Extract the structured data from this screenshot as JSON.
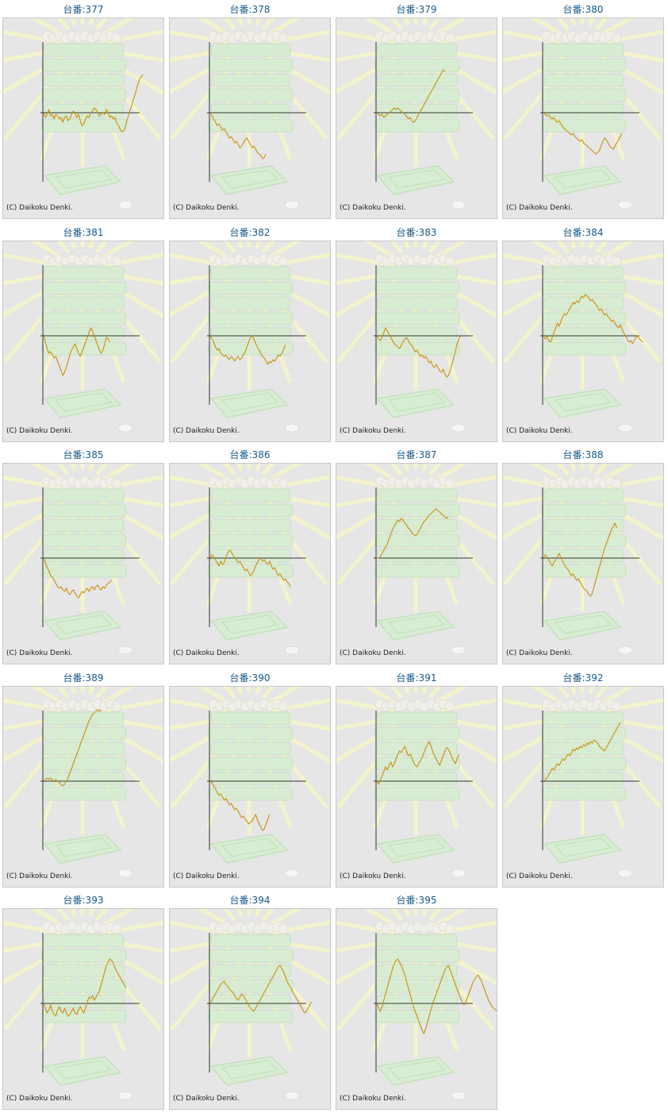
{
  "title_prefix": "台番:",
  "copyright": "(C) Daikoku Denki.",
  "colors": {
    "line": "#c8900a",
    "title": "#1a5a8a",
    "panel_bg": "#e6e6e6",
    "axis": "#333333"
  },
  "chart_data": [
    {
      "type": "line",
      "label": "台番:377",
      "values": [
        0,
        -3,
        -1,
        2,
        -2,
        -1,
        -4,
        -1,
        -2,
        -4,
        -3,
        -6,
        -3,
        -2,
        -5,
        -4,
        -1,
        1,
        0,
        -3,
        -1,
        -5,
        -8,
        -7,
        -4,
        -2,
        -3,
        0,
        1,
        3,
        2,
        0,
        -2,
        -1,
        0,
        -1,
        2,
        0,
        -3,
        -2,
        -4,
        -3,
        -7,
        -8,
        -11,
        -12,
        -11,
        -8,
        -4,
        0,
        3,
        7,
        10,
        14,
        18,
        21,
        23,
        24
      ]
    },
    {
      "type": "line",
      "label": "台番:378",
      "values": [
        0,
        -2,
        -4,
        -6,
        -8,
        -7,
        -9,
        -11,
        -10,
        -12,
        -14,
        -16,
        -15,
        -17,
        -19,
        -18,
        -20,
        -22,
        -21,
        -19,
        -17,
        -16,
        -18,
        -20,
        -22,
        -21,
        -23,
        -25,
        -26,
        -27,
        -29,
        -28,
        -26
      ]
    },
    {
      "type": "line",
      "label": "台番:379",
      "values": [
        0,
        -1,
        -2,
        -1,
        -3,
        -2,
        -1,
        0,
        1,
        2,
        3,
        2,
        3,
        2,
        1,
        0,
        -1,
        -2,
        -4,
        -3,
        -5,
        -6,
        -5,
        -3,
        -1,
        1,
        3,
        5,
        7,
        9,
        11,
        13,
        15,
        17,
        19,
        21,
        23,
        25,
        27,
        26
      ]
    },
    {
      "type": "line",
      "label": "台番:380",
      "values": [
        0,
        -1,
        -2,
        -1,
        -3,
        -4,
        -3,
        -5,
        -6,
        -5,
        -7,
        -9,
        -10,
        -11,
        -12,
        -13,
        -14,
        -13,
        -15,
        -16,
        -17,
        -18,
        -17,
        -19,
        -20,
        -21,
        -22,
        -23,
        -24,
        -25,
        -26,
        -25,
        -24,
        -21,
        -18,
        -16,
        -17,
        -19,
        -21,
        -22,
        -23,
        -21,
        -19,
        -17,
        -15,
        -13
      ]
    },
    {
      "type": "line",
      "label": "台番:381",
      "values": [
        0,
        -4,
        -8,
        -11,
        -10,
        -12,
        -14,
        -13,
        -16,
        -19,
        -22,
        -25,
        -23,
        -20,
        -16,
        -12,
        -9,
        -7,
        -5,
        -8,
        -11,
        -13,
        -10,
        -7,
        -4,
        -1,
        2,
        5,
        3,
        0,
        -3,
        -6,
        -9,
        -11,
        -9,
        -5,
        -1,
        -2,
        -4
      ]
    },
    {
      "type": "line",
      "label": "台番:382",
      "values": [
        0,
        -2,
        -4,
        -7,
        -9,
        -8,
        -11,
        -12,
        -13,
        -12,
        -14,
        -15,
        -13,
        -14,
        -16,
        -14,
        -13,
        -15,
        -14,
        -12,
        -10,
        -7,
        -4,
        -1,
        0,
        -2,
        -5,
        -7,
        -9,
        -11,
        -13,
        -14,
        -16,
        -18,
        -16,
        -17,
        -15,
        -16,
        -14,
        -12,
        -13,
        -11,
        -9,
        -6
      ]
    },
    {
      "type": "line",
      "label": "台番:383",
      "values": [
        0,
        -2,
        -3,
        -1,
        2,
        5,
        3,
        1,
        -1,
        -3,
        -5,
        -6,
        -7,
        -8,
        -6,
        -4,
        -2,
        -1,
        -3,
        -5,
        -6,
        -8,
        -10,
        -9,
        -11,
        -13,
        -12,
        -14,
        -13,
        -15,
        -17,
        -16,
        -19,
        -20,
        -18,
        -20,
        -22,
        -23,
        -21,
        -24,
        -26,
        -25,
        -22,
        -18,
        -14,
        -10,
        -5,
        -2,
        0
      ]
    },
    {
      "type": "line",
      "label": "台番:384",
      "values": [
        0,
        -2,
        0,
        -3,
        -4,
        -1,
        2,
        5,
        8,
        6,
        9,
        12,
        14,
        13,
        15,
        17,
        19,
        21,
        20,
        22,
        21,
        23,
        25,
        24,
        26,
        25,
        24,
        22,
        23,
        21,
        20,
        18,
        16,
        17,
        15,
        13,
        14,
        12,
        11,
        9,
        10,
        8,
        6,
        5,
        7,
        4,
        2,
        0,
        -2,
        -4,
        -3,
        -5,
        -3,
        -1,
        0,
        -2,
        -3,
        -4
      ]
    },
    {
      "type": "line",
      "label": "台番:385",
      "values": [
        0,
        -3,
        -6,
        -8,
        -11,
        -12,
        -14,
        -16,
        -18,
        -19,
        -18,
        -20,
        -21,
        -19,
        -22,
        -23,
        -21,
        -20,
        -22,
        -24,
        -25,
        -23,
        -21,
        -22,
        -20,
        -19,
        -21,
        -19,
        -18,
        -20,
        -18,
        -17,
        -19,
        -20,
        -18,
        -19,
        -17,
        -16,
        -15,
        -14
      ]
    },
    {
      "type": "line",
      "label": "台番:386",
      "values": [
        0,
        2,
        1,
        -1,
        -3,
        -5,
        -2,
        -4,
        -3,
        1,
        3,
        5,
        4,
        2,
        0,
        -1,
        -3,
        -2,
        -4,
        -6,
        -8,
        -7,
        -9,
        -11,
        -10,
        -8,
        -5,
        -3,
        -1,
        0,
        -2,
        -1,
        -3,
        -4,
        -2,
        -5,
        -7,
        -6,
        -9,
        -11,
        -10,
        -12,
        -14,
        -13,
        -15,
        -16,
        -18
      ]
    },
    {
      "type": "line",
      "label": "台番:387",
      "values": [
        0,
        0,
        1,
        3,
        5,
        7,
        9,
        12,
        15,
        18,
        20,
        22,
        24,
        23,
        25,
        24,
        22,
        21,
        19,
        18,
        16,
        15,
        14,
        15,
        17,
        19,
        21,
        23,
        24,
        26,
        27,
        28,
        29,
        30,
        31,
        30,
        29,
        28,
        27,
        26,
        25,
        26
      ]
    },
    {
      "type": "line",
      "label": "台番:388",
      "values": [
        0,
        2,
        1,
        -1,
        -3,
        -5,
        -3,
        -1,
        1,
        3,
        0,
        -2,
        -4,
        -6,
        -7,
        -9,
        -11,
        -10,
        -12,
        -14,
        -13,
        -15,
        -17,
        -19,
        -20,
        -21,
        -23,
        -24,
        -22,
        -18,
        -14,
        -10,
        -6,
        -2,
        2,
        6,
        9,
        12,
        15,
        18,
        20,
        22,
        19
      ]
    },
    {
      "type": "line",
      "label": "台番:389",
      "values": [
        0,
        1,
        2,
        1,
        2,
        1,
        0,
        1,
        0,
        -1,
        -2,
        -3,
        -2,
        0,
        2,
        5,
        8,
        11,
        14,
        17,
        20,
        23,
        26,
        29,
        32,
        35,
        38,
        40,
        42,
        43,
        44,
        45,
        44,
        45
      ]
    },
    {
      "type": "line",
      "label": "台番:390",
      "values": [
        0,
        -1,
        -3,
        -5,
        -7,
        -9,
        -8,
        -10,
        -12,
        -11,
        -13,
        -15,
        -14,
        -16,
        -18,
        -17,
        -19,
        -21,
        -23,
        -22,
        -24,
        -25,
        -27,
        -26,
        -25,
        -23,
        -21,
        -24,
        -27,
        -29,
        -31,
        -30,
        -27,
        -24,
        -21
      ]
    },
    {
      "type": "line",
      "label": "台番:391",
      "values": [
        0,
        -2,
        1,
        3,
        6,
        9,
        7,
        10,
        12,
        9,
        11,
        14,
        17,
        19,
        18,
        20,
        22,
        19,
        16,
        17,
        15,
        12,
        10,
        9,
        11,
        13,
        15,
        18,
        21,
        23,
        25,
        22,
        19,
        16,
        14,
        12,
        10,
        13,
        16,
        19,
        21,
        20,
        18,
        15,
        13,
        11,
        14,
        17
      ]
    },
    {
      "type": "line",
      "label": "台番:392",
      "values": [
        0,
        1,
        2,
        4,
        6,
        8,
        7,
        9,
        11,
        10,
        12,
        14,
        13,
        15,
        17,
        16,
        18,
        20,
        19,
        21,
        20,
        22,
        21,
        23,
        22,
        24,
        23,
        25,
        24,
        26,
        25,
        24,
        22,
        21,
        20,
        19,
        21,
        23,
        25,
        27,
        29,
        31,
        33,
        35,
        37
      ]
    },
    {
      "type": "line",
      "label": "台番:393",
      "values": [
        0,
        -3,
        -6,
        -4,
        -1,
        -5,
        -7,
        -8,
        -4,
        -2,
        -5,
        -6,
        -3,
        -6,
        -8,
        -7,
        -5,
        -3,
        -6,
        -7,
        -4,
        -2,
        -4,
        -6,
        -3,
        1,
        4,
        3,
        5,
        2,
        4,
        6,
        8,
        12,
        16,
        20,
        24,
        26,
        28,
        27,
        25,
        22,
        20,
        18,
        16,
        14,
        12,
        10
      ]
    },
    {
      "type": "line",
      "label": "台番:394",
      "values": [
        0,
        2,
        4,
        6,
        8,
        10,
        12,
        13,
        14,
        12,
        11,
        9,
        8,
        7,
        5,
        3,
        2,
        4,
        6,
        5,
        3,
        1,
        -1,
        -3,
        -4,
        -5,
        -3,
        -1,
        1,
        3,
        5,
        7,
        9,
        11,
        13,
        15,
        17,
        19,
        21,
        23,
        24,
        22,
        20,
        17,
        14,
        12,
        10,
        8,
        6,
        4,
        2,
        0,
        -2,
        -4,
        -6,
        -5,
        -3,
        -1,
        1
      ]
    },
    {
      "type": "line",
      "label": "台番:395",
      "values": [
        0,
        -3,
        -5,
        -2,
        2,
        6,
        10,
        14,
        18,
        22,
        25,
        27,
        28,
        26,
        24,
        21,
        18,
        14,
        10,
        6,
        2,
        -2,
        -5,
        -8,
        -11,
        -14,
        -17,
        -19,
        -16,
        -12,
        -8,
        -4,
        0,
        3,
        6,
        9,
        12,
        15,
        18,
        21,
        23,
        24,
        21,
        18,
        15,
        12,
        9,
        6,
        3,
        1,
        -1,
        1,
        4,
        7,
        10,
        13,
        15,
        17,
        18,
        16,
        14,
        11,
        8,
        5,
        2,
        0,
        -2,
        -3,
        -4,
        -5,
        -6
      ]
    }
  ]
}
